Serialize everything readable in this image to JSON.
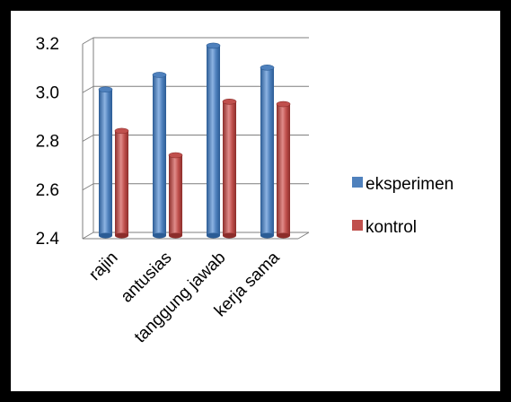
{
  "chart_data": {
    "type": "bar",
    "categories": [
      "rajin",
      "antusias",
      "tanggung jawab",
      "kerja sama"
    ],
    "series": [
      {
        "name": "eksperimen",
        "values": [
          3.0,
          3.06,
          3.18,
          3.09
        ]
      },
      {
        "name": "kontrol",
        "values": [
          2.83,
          2.73,
          2.95,
          2.94
        ]
      }
    ],
    "yticks": [
      "2.4",
      "2.6",
      "2.8",
      "3.0",
      "3.2"
    ],
    "ylim": [
      2.4,
      3.2
    ],
    "title": "",
    "xlabel": "",
    "ylabel": "",
    "grid": true,
    "legend_position": "right",
    "colors": {
      "eksperimen": "#4F81BD",
      "eksperimen_dark": "#2B5C95",
      "eksperimen_light": "#8DB3E2",
      "kontrol": "#C0504D",
      "kontrol_dark": "#8C2D2A",
      "kontrol_light": "#E08B89",
      "grid": "#7F7F7F"
    }
  }
}
